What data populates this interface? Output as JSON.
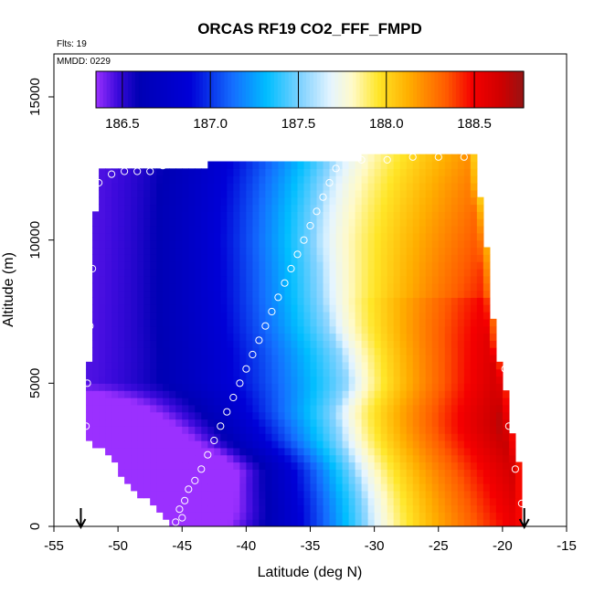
{
  "chart_data": {
    "type": "heatmap",
    "title": "ORCAS RF19 CO2_FFF_FMPD",
    "notes": {
      "flights": "Flts: 19",
      "mmdd": "MMDD: 0229"
    },
    "xlabel": "Latitude (deg N)",
    "ylabel": "Altitude (m)",
    "xlim": [
      -55,
      -15
    ],
    "ylim": [
      0,
      16500
    ],
    "xticks": [
      -55,
      -50,
      -45,
      -40,
      -35,
      -30,
      -25,
      -20,
      -15
    ],
    "xtick_labels": [
      "-55",
      "-50",
      "-45",
      "-40",
      "-35",
      "-30",
      "-25",
      "-20",
      "-15"
    ],
    "yticks": [
      0,
      5000,
      10000,
      15000
    ],
    "ytick_labels": [
      "0",
      "5000",
      "10000",
      "15000"
    ],
    "colorbar": {
      "range": [
        186.35,
        188.78
      ],
      "ticks": [
        186.5,
        187.0,
        187.5,
        188.0,
        188.5
      ],
      "tick_labels": [
        "186.5",
        "187.0",
        "187.5",
        "188.0",
        "188.5"
      ]
    },
    "arrows_at_latitude": [
      -52.9,
      -18.3
    ],
    "field_extent": {
      "left_boundary": [
        [
          0,
          -45.5
        ],
        [
          500,
          -46.5
        ],
        [
          1000,
          -48.0
        ],
        [
          1500,
          -49.2
        ],
        [
          2000,
          -50.0
        ],
        [
          2500,
          -50.8
        ],
        [
          3000,
          -52.5
        ],
        [
          4000,
          -52.4
        ],
        [
          5000,
          -52.4
        ],
        [
          6000,
          -52.2
        ],
        [
          8000,
          -52.0
        ],
        [
          10000,
          -51.8
        ],
        [
          12000,
          -51.7
        ],
        [
          12500,
          -51.5
        ]
      ],
      "right_boundary": [
        [
          0,
          -18.3
        ],
        [
          2000,
          -18.6
        ],
        [
          3000,
          -19.2
        ],
        [
          4000,
          -19.6
        ],
        [
          5000,
          -19.8
        ],
        [
          6500,
          -20.6
        ],
        [
          7500,
          -20.8
        ],
        [
          9000,
          -21.1
        ],
        [
          10000,
          -21.3
        ],
        [
          11000,
          -21.6
        ],
        [
          12000,
          -22.0
        ],
        [
          13000,
          -22.1
        ]
      ],
      "top_boundary": [
        [
          -51.5,
          12500
        ],
        [
          -44.0,
          12500
        ],
        [
          -42.0,
          12700
        ],
        [
          -36.0,
          12700
        ],
        [
          -30.0,
          12900
        ],
        [
          -22.1,
          13000
        ]
      ]
    },
    "transition_isoline_187_7": [
      [
        0,
        -30.5
      ],
      [
        1000,
        -30.8
      ],
      [
        2000,
        -31.5
      ],
      [
        3000,
        -32.5
      ],
      [
        4000,
        -33.0
      ],
      [
        5000,
        -32.0
      ],
      [
        6000,
        -32.5
      ],
      [
        7000,
        -33.5
      ],
      [
        8000,
        -34.0
      ],
      [
        9000,
        -34.2
      ],
      [
        10000,
        -34.5
      ],
      [
        11000,
        -34.3
      ],
      [
        12000,
        -33.8
      ],
      [
        13000,
        -33.0
      ]
    ],
    "observations": [
      [
        -45.5,
        150
      ],
      [
        -45.0,
        300
      ],
      [
        -45.2,
        600
      ],
      [
        -44.8,
        900
      ],
      [
        -44.5,
        1300
      ],
      [
        -44.0,
        1600
      ],
      [
        -43.5,
        2000
      ],
      [
        -43.0,
        2500
      ],
      [
        -42.5,
        3000
      ],
      [
        -42.0,
        3500
      ],
      [
        -41.5,
        4000
      ],
      [
        -41.0,
        4500
      ],
      [
        -40.5,
        5000
      ],
      [
        -40.0,
        5500
      ],
      [
        -39.5,
        6000
      ],
      [
        -39.0,
        6500
      ],
      [
        -38.5,
        7000
      ],
      [
        -38.0,
        7500
      ],
      [
        -37.5,
        8000
      ],
      [
        -37.0,
        8500
      ],
      [
        -36.5,
        9000
      ],
      [
        -36.0,
        9500
      ],
      [
        -35.5,
        10000
      ],
      [
        -35.0,
        10500
      ],
      [
        -34.5,
        11000
      ],
      [
        -34.0,
        11500
      ],
      [
        -33.5,
        12000
      ],
      [
        -33.0,
        12500
      ],
      [
        -46.5,
        12600
      ],
      [
        -47.5,
        12400
      ],
      [
        -48.5,
        12400
      ],
      [
        -49.5,
        12400
      ],
      [
        -50.5,
        12300
      ],
      [
        -51.5,
        12000
      ],
      [
        -52.0,
        9000
      ],
      [
        -52.2,
        7000
      ],
      [
        -52.4,
        5000
      ],
      [
        -52.5,
        3500
      ],
      [
        -51.5,
        2500
      ],
      [
        -50.5,
        1800
      ],
      [
        -21.0,
        13000
      ],
      [
        -23.0,
        12900
      ],
      [
        -25.0,
        12900
      ],
      [
        -27.0,
        12900
      ],
      [
        -29.0,
        12800
      ],
      [
        -31.0,
        12800
      ],
      [
        -20.5,
        9500
      ],
      [
        -20.0,
        7500
      ],
      [
        -19.8,
        5500
      ],
      [
        -19.5,
        3500
      ],
      [
        -19.0,
        2000
      ],
      [
        -18.5,
        800
      ]
    ]
  }
}
